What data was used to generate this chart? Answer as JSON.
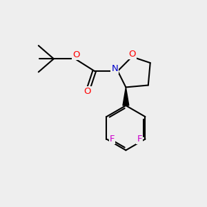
{
  "background_color": "#eeeeee",
  "bond_color": "#000000",
  "o_color": "#ff0000",
  "n_color": "#0000cc",
  "f_color": "#cc00cc",
  "line_width": 1.5,
  "figsize": [
    3.0,
    3.0
  ],
  "dpi": 100,
  "xlim": [
    0,
    10
  ],
  "ylim": [
    0,
    10
  ]
}
